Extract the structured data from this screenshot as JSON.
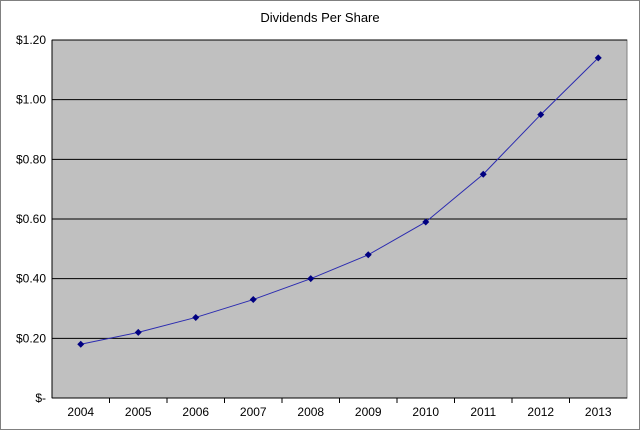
{
  "chart_data": {
    "type": "line",
    "title": "Dividends Per Share",
    "xlabel": "",
    "ylabel": "",
    "categories": [
      "2004",
      "2005",
      "2006",
      "2007",
      "2008",
      "2009",
      "2010",
      "2011",
      "2012",
      "2013"
    ],
    "series": [
      {
        "values": [
          0.18,
          0.22,
          0.27,
          0.33,
          0.4,
          0.48,
          0.59,
          0.75,
          0.95,
          1.14
        ]
      }
    ],
    "ylim": [
      0,
      1.2
    ],
    "yticks": [
      0,
      0.2,
      0.4,
      0.6,
      0.8,
      1.0,
      1.2
    ],
    "ytick_labels": [
      "$-",
      "$0.20",
      "$0.40",
      "$0.60",
      "$0.80",
      "$1.00",
      "$1.20"
    ],
    "grid": "horizontal",
    "legend": "none",
    "colors": {
      "plot_background": "#c0c0c0",
      "line": "#2b2bb0",
      "marker": "#000080",
      "gridline": "#000000",
      "chart_border": "#808080"
    }
  }
}
